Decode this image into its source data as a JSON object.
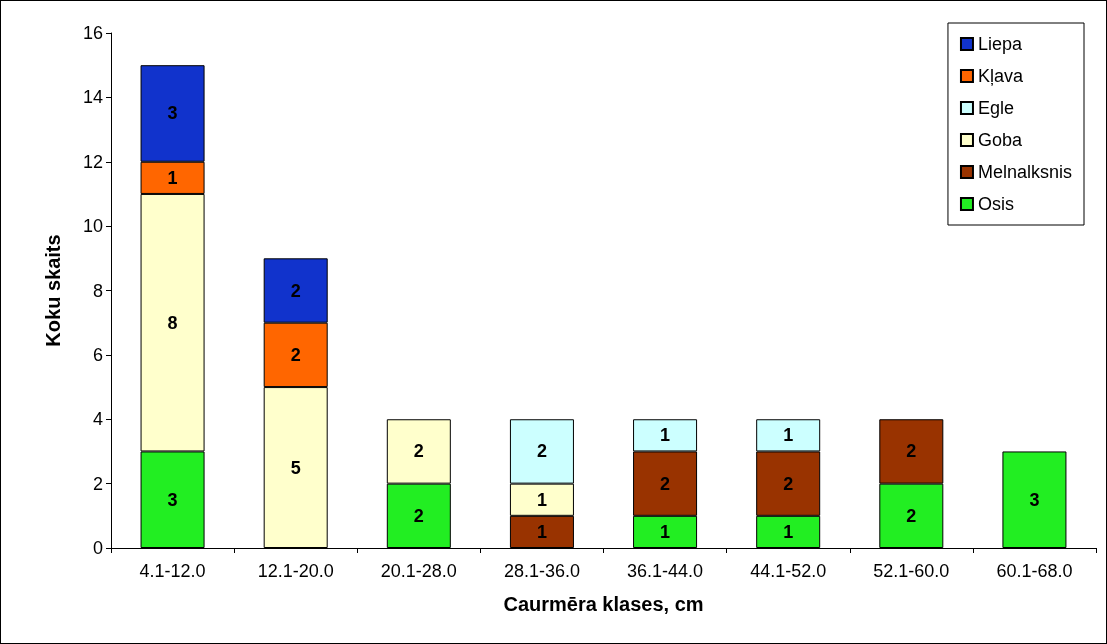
{
  "chart_data": {
    "type": "bar",
    "xlabel": "Caurmēra klases, cm",
    "ylabel": "Koku skaits",
    "categories": [
      "4.1-12.0",
      "12.1-20.0",
      "20.1-28.0",
      "28.1-36.0",
      "36.1-44.0",
      "44.1-52.0",
      "52.1-60.0",
      "60.1-68.0"
    ],
    "stacked": true,
    "ylim": [
      0,
      16
    ],
    "yticks": [
      0,
      2,
      4,
      6,
      8,
      10,
      12,
      14,
      16
    ],
    "grid": false,
    "legend": "top right",
    "data_labels": true,
    "series": [
      {
        "name": "Osis",
        "color": "#22ee22",
        "values": [
          3,
          null,
          2,
          null,
          1,
          1,
          2,
          3
        ]
      },
      {
        "name": "Melnalksnis",
        "color": "#993300",
        "values": [
          null,
          null,
          null,
          1,
          2,
          2,
          2,
          null
        ]
      },
      {
        "name": "Goba",
        "color": "#ffffcc",
        "values": [
          8,
          5,
          2,
          1,
          null,
          null,
          null,
          null
        ]
      },
      {
        "name": "Egle",
        "color": "#ccffff",
        "values": [
          null,
          null,
          null,
          2,
          1,
          1,
          null,
          null
        ]
      },
      {
        "name": "Kļava",
        "color": "#ff6600",
        "values": [
          1,
          2,
          null,
          null,
          null,
          null,
          null,
          null
        ]
      },
      {
        "name": "Liepa",
        "color": "#1133cc",
        "values": [
          3,
          2,
          null,
          null,
          null,
          null,
          null,
          null
        ]
      }
    ]
  }
}
